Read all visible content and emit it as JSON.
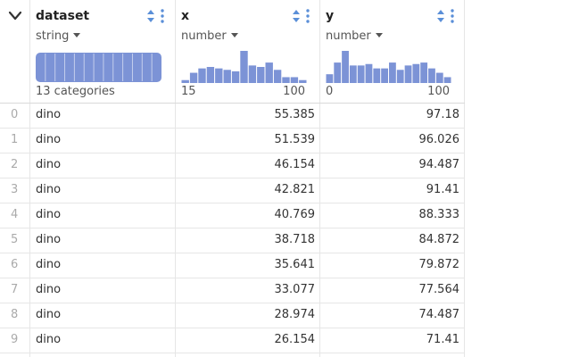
{
  "columns": [
    {
      "name": "dataset",
      "type_label": "string",
      "summary": "13 categories",
      "categories": 13,
      "bar_color": "#7c93d6"
    },
    {
      "name": "x",
      "type_label": "number",
      "hist_min": "15",
      "hist_max": "100",
      "hist_counts": [
        2,
        7,
        10,
        11,
        10,
        9,
        8,
        22,
        12,
        11,
        14,
        9,
        4,
        4,
        2
      ]
    },
    {
      "name": "y",
      "type_label": "number",
      "hist_min": "0",
      "hist_max": "100",
      "hist_counts": [
        6,
        14,
        22,
        12,
        12,
        13,
        10,
        10,
        14,
        9,
        12,
        13,
        14,
        10,
        7,
        4
      ]
    }
  ],
  "rows": [
    {
      "index": "0",
      "dataset": "dino",
      "x": "55.385",
      "y": "97.18"
    },
    {
      "index": "1",
      "dataset": "dino",
      "x": "51.539",
      "y": "96.026"
    },
    {
      "index": "2",
      "dataset": "dino",
      "x": "46.154",
      "y": "94.487"
    },
    {
      "index": "3",
      "dataset": "dino",
      "x": "42.821",
      "y": "91.41"
    },
    {
      "index": "4",
      "dataset": "dino",
      "x": "40.769",
      "y": "88.333"
    },
    {
      "index": "5",
      "dataset": "dino",
      "x": "38.718",
      "y": "84.872"
    },
    {
      "index": "6",
      "dataset": "dino",
      "x": "35.641",
      "y": "79.872"
    },
    {
      "index": "7",
      "dataset": "dino",
      "x": "33.077",
      "y": "77.564"
    },
    {
      "index": "8",
      "dataset": "dino",
      "x": "28.974",
      "y": "74.487"
    },
    {
      "index": "9",
      "dataset": "dino",
      "x": "26.154",
      "y": "71.41"
    }
  ],
  "colors": {
    "accent": "#7c93d6",
    "icon": "#5a8fd8",
    "grid": "#e6e6e6"
  },
  "icons": [
    "chevron-down-icon",
    "sort-icon",
    "kebab-menu-icon"
  ]
}
